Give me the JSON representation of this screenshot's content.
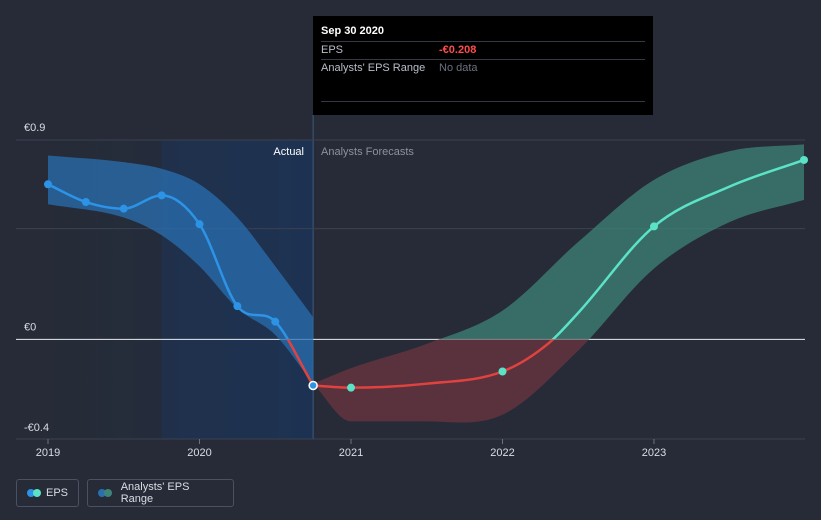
{
  "colors": {
    "background": "#262b37",
    "actual_line": "#2d93e6",
    "actual_band": "#2a6fb0",
    "forecast_line_positive": "#5be3c8",
    "forecast_band_positive": "#3f8478",
    "forecast_line_negative": "#e0433f",
    "forecast_band_negative": "#6b3640",
    "zero_line": "#e8ebf0",
    "grid": "#3a4150"
  },
  "tooltip": {
    "date": "Sep 30 2020",
    "eps_label": "EPS",
    "eps_value": "-€0.208",
    "range_label": "Analysts' EPS Range",
    "range_value": "No data"
  },
  "section_labels": {
    "actual": "Actual",
    "forecast": "Analysts Forecasts"
  },
  "legend": {
    "eps": "EPS",
    "range": "Analysts' EPS Range"
  },
  "chart_data": {
    "type": "line",
    "xlim": [
      2019.0,
      2023.99
    ],
    "ylim": [
      -0.4,
      0.9
    ],
    "y_ticks": [
      {
        "value": 0.9,
        "label": "€0.9"
      },
      {
        "value": 0,
        "label": "€0"
      },
      {
        "value": -0.4,
        "label": "-€0.4"
      }
    ],
    "x_ticks": [
      {
        "value": 2019,
        "label": "2019"
      },
      {
        "value": 2020,
        "label": "2020"
      },
      {
        "value": 2021,
        "label": "2021"
      },
      {
        "value": 2022,
        "label": "2022"
      },
      {
        "value": 2023,
        "label": "2023"
      }
    ],
    "divider_x": 2020.75,
    "series": [
      {
        "name": "EPS",
        "kind": "actual",
        "points": [
          [
            2019.0,
            0.7
          ],
          [
            2019.25,
            0.62
          ],
          [
            2019.5,
            0.59
          ],
          [
            2019.75,
            0.65
          ],
          [
            2020.0,
            0.52
          ],
          [
            2020.25,
            0.15
          ],
          [
            2020.5,
            0.08
          ],
          [
            2020.75,
            -0.208
          ]
        ]
      },
      {
        "name": "EPS",
        "kind": "forecast",
        "points": [
          [
            2020.75,
            -0.208
          ],
          [
            2021.0,
            -0.218
          ],
          [
            2021.5,
            -0.2
          ],
          [
            2022.0,
            -0.145
          ],
          [
            2022.3,
            -0.02
          ],
          [
            2022.5,
            0.12
          ],
          [
            2023.0,
            0.51
          ],
          [
            2023.5,
            0.69
          ],
          [
            2023.99,
            0.81
          ]
        ]
      }
    ],
    "range_bands": [
      {
        "kind": "actual",
        "upper": [
          [
            2019.0,
            0.83
          ],
          [
            2019.5,
            0.8
          ],
          [
            2019.75,
            0.77
          ],
          [
            2020.0,
            0.7
          ],
          [
            2020.25,
            0.55
          ],
          [
            2020.5,
            0.33
          ],
          [
            2020.75,
            0.1
          ]
        ],
        "lower": [
          [
            2019.0,
            0.61
          ],
          [
            2019.5,
            0.55
          ],
          [
            2019.75,
            0.47
          ],
          [
            2020.0,
            0.33
          ],
          [
            2020.25,
            0.14
          ],
          [
            2020.5,
            0.02
          ],
          [
            2020.75,
            -0.2
          ]
        ]
      },
      {
        "kind": "forecast",
        "upper": [
          [
            2020.75,
            -0.2
          ],
          [
            2021.0,
            -0.13
          ],
          [
            2021.5,
            -0.02
          ],
          [
            2022.0,
            0.13
          ],
          [
            2022.5,
            0.44
          ],
          [
            2023.0,
            0.72
          ],
          [
            2023.5,
            0.85
          ],
          [
            2023.99,
            0.88
          ]
        ],
        "lower": [
          [
            2020.75,
            -0.2
          ],
          [
            2021.0,
            -0.37
          ],
          [
            2021.5,
            -0.37
          ],
          [
            2022.0,
            -0.34
          ],
          [
            2022.5,
            -0.05
          ],
          [
            2023.0,
            0.32
          ],
          [
            2023.5,
            0.53
          ],
          [
            2023.99,
            0.63
          ]
        ]
      }
    ],
    "markers": [
      {
        "x": 2019.0,
        "y": 0.7,
        "kind": "actual"
      },
      {
        "x": 2019.25,
        "y": 0.62,
        "kind": "actual"
      },
      {
        "x": 2019.5,
        "y": 0.59,
        "kind": "actual"
      },
      {
        "x": 2019.75,
        "y": 0.65,
        "kind": "actual"
      },
      {
        "x": 2020.0,
        "y": 0.52,
        "kind": "actual"
      },
      {
        "x": 2020.25,
        "y": 0.15,
        "kind": "actual"
      },
      {
        "x": 2020.5,
        "y": 0.08,
        "kind": "actual"
      },
      {
        "x": 2020.75,
        "y": -0.208,
        "kind": "selected"
      },
      {
        "x": 2021.0,
        "y": -0.218,
        "kind": "forecast"
      },
      {
        "x": 2022.0,
        "y": -0.145,
        "kind": "forecast"
      },
      {
        "x": 2023.0,
        "y": 0.51,
        "kind": "forecast"
      },
      {
        "x": 2023.99,
        "y": 0.81,
        "kind": "forecast"
      }
    ]
  }
}
